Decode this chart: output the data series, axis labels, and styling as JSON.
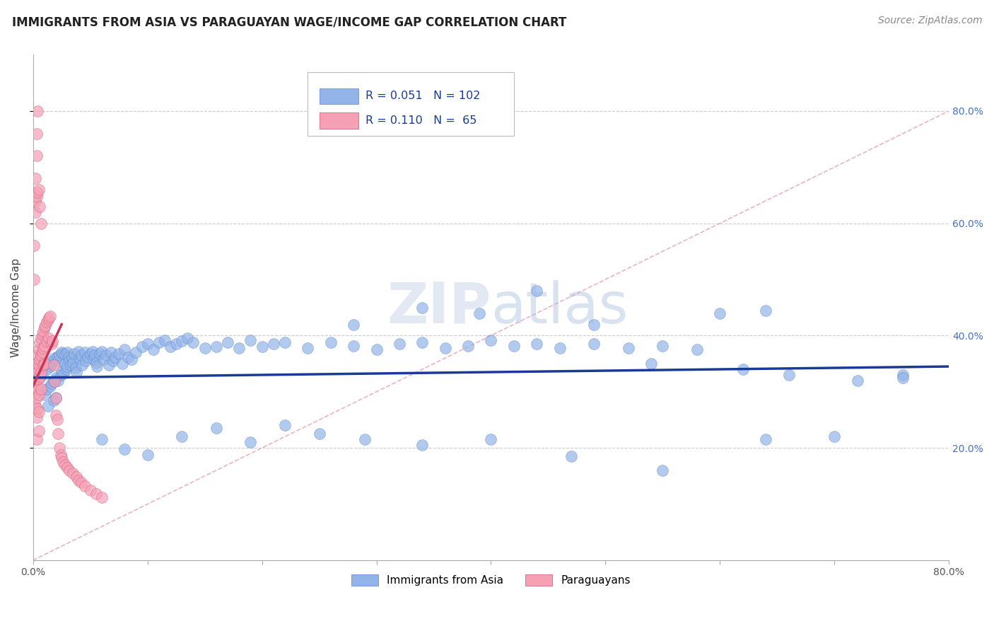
{
  "title": "IMMIGRANTS FROM ASIA VS PARAGUAYAN WAGE/INCOME GAP CORRELATION CHART",
  "source": "Source: ZipAtlas.com",
  "ylabel": "Wage/Income Gap",
  "legend1_label": "Immigrants from Asia",
  "legend2_label": "Paraguayans",
  "R1": "0.051",
  "N1": "102",
  "R2": "0.110",
  "N2": "65",
  "watermark": "ZIPatlas",
  "xlim": [
    0.0,
    0.8
  ],
  "ylim": [
    0.0,
    0.9
  ],
  "blue_color": "#92b4e8",
  "blue_edge": "#5580cc",
  "pink_color": "#f5a0b5",
  "pink_edge": "#cc5070",
  "blue_line_color": "#1a3a9a",
  "pink_line_color": "#cc3355",
  "diag_color": "#e8a0b0",
  "blue_scatter_x": [
    0.008,
    0.01,
    0.012,
    0.012,
    0.013,
    0.015,
    0.015,
    0.016,
    0.016,
    0.017,
    0.018,
    0.018,
    0.019,
    0.02,
    0.02,
    0.021,
    0.022,
    0.022,
    0.023,
    0.024,
    0.025,
    0.025,
    0.026,
    0.027,
    0.028,
    0.028,
    0.029,
    0.03,
    0.03,
    0.031,
    0.032,
    0.033,
    0.034,
    0.035,
    0.036,
    0.037,
    0.038,
    0.04,
    0.041,
    0.042,
    0.043,
    0.045,
    0.046,
    0.048,
    0.05,
    0.052,
    0.053,
    0.054,
    0.055,
    0.056,
    0.058,
    0.06,
    0.062,
    0.064,
    0.066,
    0.068,
    0.07,
    0.072,
    0.075,
    0.078,
    0.08,
    0.083,
    0.086,
    0.09,
    0.095,
    0.1,
    0.105,
    0.11,
    0.115,
    0.12,
    0.125,
    0.13,
    0.135,
    0.14,
    0.15,
    0.16,
    0.17,
    0.18,
    0.19,
    0.2,
    0.21,
    0.22,
    0.24,
    0.26,
    0.28,
    0.3,
    0.32,
    0.34,
    0.36,
    0.38,
    0.4,
    0.42,
    0.44,
    0.46,
    0.49,
    0.52,
    0.55,
    0.58,
    0.62,
    0.66,
    0.72,
    0.76
  ],
  "blue_scatter_y": [
    0.33,
    0.295,
    0.34,
    0.305,
    0.275,
    0.345,
    0.31,
    0.35,
    0.315,
    0.355,
    0.32,
    0.285,
    0.36,
    0.325,
    0.29,
    0.362,
    0.355,
    0.32,
    0.365,
    0.33,
    0.37,
    0.335,
    0.368,
    0.332,
    0.366,
    0.35,
    0.34,
    0.37,
    0.345,
    0.362,
    0.355,
    0.348,
    0.36,
    0.352,
    0.368,
    0.342,
    0.335,
    0.372,
    0.358,
    0.365,
    0.348,
    0.37,
    0.355,
    0.362,
    0.368,
    0.372,
    0.358,
    0.365,
    0.352,
    0.345,
    0.368,
    0.372,
    0.358,
    0.365,
    0.348,
    0.37,
    0.355,
    0.362,
    0.368,
    0.35,
    0.375,
    0.362,
    0.358,
    0.37,
    0.38,
    0.385,
    0.375,
    0.388,
    0.392,
    0.38,
    0.385,
    0.39,
    0.395,
    0.388,
    0.378,
    0.38,
    0.388,
    0.378,
    0.392,
    0.38,
    0.385,
    0.388,
    0.378,
    0.388,
    0.382,
    0.375,
    0.385,
    0.388,
    0.378,
    0.382,
    0.392,
    0.382,
    0.385,
    0.378,
    0.385,
    0.378,
    0.382,
    0.375,
    0.34,
    0.33,
    0.32,
    0.33
  ],
  "blue_low_x": [
    0.06,
    0.08,
    0.1,
    0.13,
    0.16,
    0.19,
    0.22,
    0.25,
    0.29,
    0.34,
    0.4,
    0.47,
    0.55,
    0.64,
    0.7,
    0.76
  ],
  "blue_low_y": [
    0.215,
    0.198,
    0.188,
    0.22,
    0.235,
    0.21,
    0.24,
    0.225,
    0.215,
    0.205,
    0.215,
    0.185,
    0.16,
    0.215,
    0.22,
    0.325
  ],
  "blue_high_x": [
    0.28,
    0.34,
    0.39,
    0.44,
    0.49,
    0.54,
    0.6,
    0.64
  ],
  "blue_high_y": [
    0.42,
    0.45,
    0.44,
    0.48,
    0.42,
    0.35,
    0.44,
    0.445
  ],
  "pink_scatter_x": [
    0.001,
    0.001,
    0.002,
    0.002,
    0.002,
    0.003,
    0.003,
    0.003,
    0.003,
    0.003,
    0.004,
    0.004,
    0.004,
    0.004,
    0.005,
    0.005,
    0.005,
    0.005,
    0.005,
    0.005,
    0.006,
    0.006,
    0.006,
    0.007,
    0.007,
    0.007,
    0.007,
    0.008,
    0.008,
    0.009,
    0.009,
    0.009,
    0.01,
    0.01,
    0.01,
    0.011,
    0.012,
    0.012,
    0.013,
    0.014,
    0.014,
    0.015,
    0.016,
    0.017,
    0.018,
    0.019,
    0.02,
    0.02,
    0.021,
    0.022,
    0.023,
    0.024,
    0.025,
    0.026,
    0.028,
    0.03,
    0.032,
    0.035,
    0.038,
    0.04,
    0.042,
    0.045,
    0.05,
    0.055,
    0.06
  ],
  "pink_scatter_y": [
    0.325,
    0.295,
    0.34,
    0.31,
    0.275,
    0.35,
    0.32,
    0.29,
    0.255,
    0.215,
    0.365,
    0.335,
    0.305,
    0.27,
    0.375,
    0.348,
    0.322,
    0.295,
    0.265,
    0.23,
    0.388,
    0.358,
    0.328,
    0.395,
    0.365,
    0.335,
    0.305,
    0.402,
    0.37,
    0.408,
    0.378,
    0.348,
    0.415,
    0.382,
    0.35,
    0.418,
    0.425,
    0.39,
    0.428,
    0.432,
    0.395,
    0.435,
    0.385,
    0.39,
    0.348,
    0.318,
    0.288,
    0.258,
    0.25,
    0.225,
    0.2,
    0.188,
    0.182,
    0.175,
    0.17,
    0.165,
    0.16,
    0.155,
    0.148,
    0.142,
    0.138,
    0.132,
    0.125,
    0.118,
    0.112
  ],
  "pink_high_x": [
    0.001,
    0.001,
    0.002,
    0.002,
    0.003,
    0.003,
    0.004
  ],
  "pink_high_y": [
    0.5,
    0.56,
    0.64,
    0.68,
    0.72,
    0.76,
    0.8
  ],
  "pink_mid_x": [
    0.002,
    0.003,
    0.004,
    0.005,
    0.006,
    0.007
  ],
  "pink_mid_y": [
    0.62,
    0.648,
    0.655,
    0.66,
    0.63,
    0.6
  ],
  "blue_line_x": [
    0.0,
    0.8
  ],
  "blue_line_y": [
    0.325,
    0.345
  ],
  "pink_line_x": [
    0.0,
    0.025
  ],
  "pink_line_y": [
    0.31,
    0.42
  ],
  "diag_line_x": [
    0.0,
    0.8
  ],
  "diag_line_y": [
    0.0,
    0.8
  ],
  "title_fontsize": 12,
  "tick_fontsize": 10,
  "source_fontsize": 10,
  "legend_fontsize": 11.5
}
